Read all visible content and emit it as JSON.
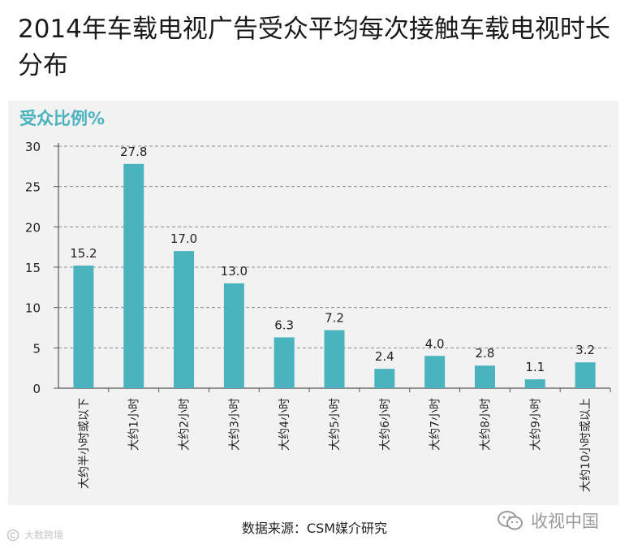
{
  "title": "2014年车载电视广告受众平均每次接触车载电视时长分布",
  "chart_data": {
    "type": "bar",
    "title": "2014年车载电视广告受众平均每次接触车载电视时长分布",
    "ylabel": "受众比例%",
    "xlabel": "",
    "ylim": [
      0,
      30
    ],
    "yticks": [
      0,
      5,
      10,
      15,
      20,
      25,
      30
    ],
    "grid": true,
    "bar_color": "#4ab3bd",
    "categories": [
      "大约半小时或以下",
      "大约1小时",
      "大约2小时",
      "大约3小时",
      "大约4小时",
      "大约5小时",
      "大约6小时",
      "大约7小时",
      "大约8小时",
      "大约9小时",
      "大约10小时或以上"
    ],
    "values": [
      15.2,
      27.8,
      17.0,
      13.0,
      6.3,
      7.2,
      2.4,
      4.0,
      2.8,
      1.1,
      3.2
    ],
    "value_labels": [
      "15.2",
      "27.8",
      "17.0",
      "13.0",
      "6.3",
      "7.2",
      "2.4",
      "4.0",
      "2.8",
      "1.1",
      "3.2"
    ]
  },
  "source": "数据来源：CSM媒介研究",
  "brand": "收视中国",
  "watermark": "大数跨境",
  "colors": {
    "accent": "#4ab3bd",
    "grid": "#8c8c8c",
    "text": "#1a1a1a"
  }
}
